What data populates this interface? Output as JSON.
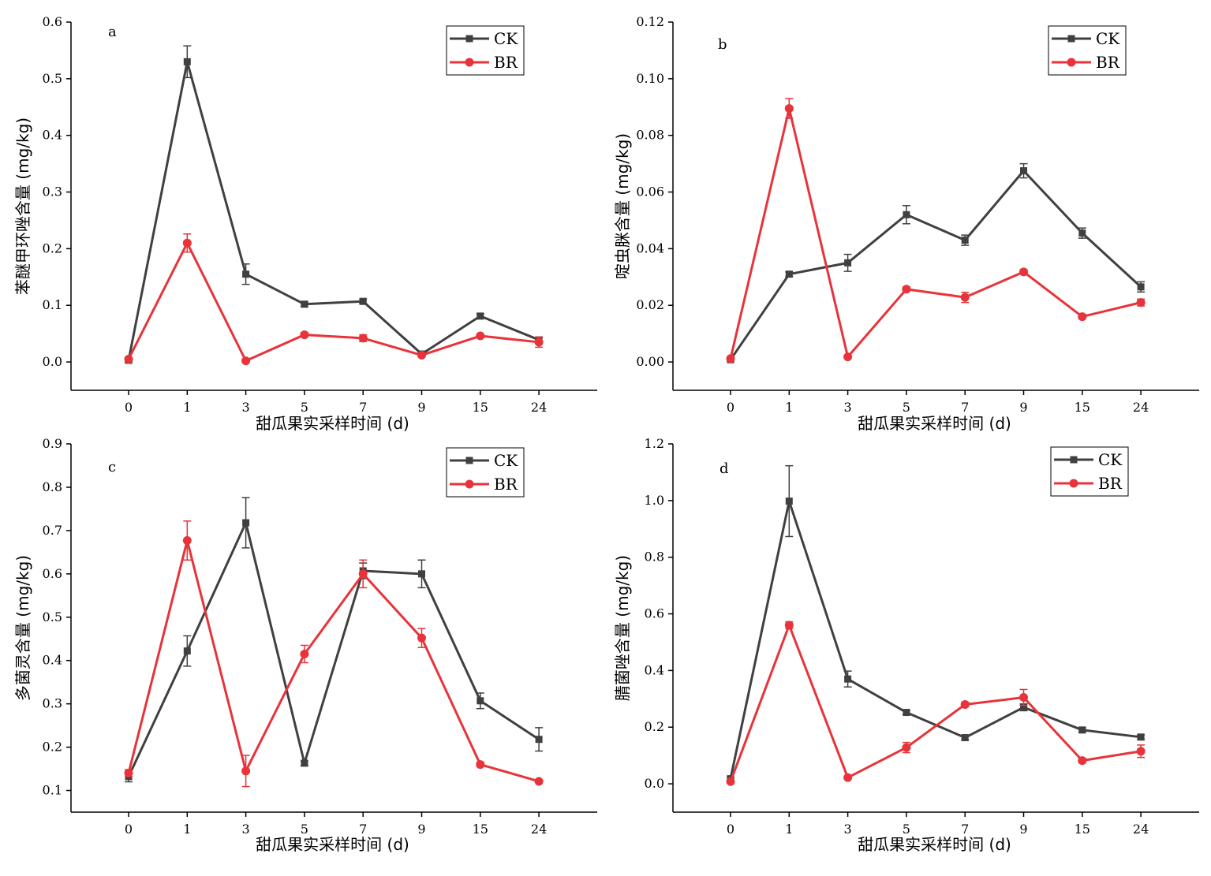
{
  "colors": {
    "ck": "#404040",
    "br": "#e8333a"
  },
  "legend": {
    "ck": "CK",
    "br": "BR"
  },
  "chart_data": [
    {
      "type": "line",
      "panel": "a",
      "xlabel": "甜瓜果实采样时间 (d)",
      "ylabel": "苯醚甲环唑含量 (mg/kg)",
      "categories": [
        "0",
        "1",
        "3",
        "5",
        "7",
        "9",
        "15",
        "24"
      ],
      "ylim": [
        -0.05,
        0.6
      ],
      "yticks": [
        0.0,
        0.1,
        0.2,
        0.3,
        0.4,
        0.5,
        0.6
      ],
      "ytick_labels": [
        "0.0",
        "0.1",
        "0.2",
        "0.3",
        "0.4",
        "0.5",
        "0.6"
      ],
      "legend_position": "top-right",
      "series": [
        {
          "name": "CK",
          "values": [
            0.003,
            0.53,
            0.155,
            0.102,
            0.107,
            0.014,
            0.081,
            0.039
          ],
          "errors": [
            0.003,
            0.028,
            0.018,
            0.004,
            0.004,
            0.003,
            0.004,
            0.004
          ]
        },
        {
          "name": "BR",
          "values": [
            0.005,
            0.21,
            0.002,
            0.048,
            0.042,
            0.012,
            0.046,
            0.035
          ],
          "errors": [
            0.003,
            0.016,
            0.002,
            0.004,
            0.006,
            0.003,
            0.003,
            0.009
          ]
        }
      ]
    },
    {
      "type": "line",
      "panel": "b",
      "xlabel": "甜瓜果实采样时间 (d)",
      "ylabel": "啶虫脒含量 (mg/kg)",
      "categories": [
        "0",
        "1",
        "3",
        "5",
        "7",
        "9",
        "15",
        "24"
      ],
      "ylim": [
        -0.01,
        0.12
      ],
      "yticks": [
        0.0,
        0.02,
        0.04,
        0.06,
        0.08,
        0.1,
        0.12
      ],
      "ytick_labels": [
        "0.00",
        "0.02",
        "0.04",
        "0.06",
        "0.08",
        "0.10",
        "0.12"
      ],
      "legend_position": "top-right",
      "series": [
        {
          "name": "CK",
          "values": [
            0.0008,
            0.031,
            0.035,
            0.052,
            0.043,
            0.0675,
            0.0455,
            0.0265
          ],
          "errors": [
            0.0004,
            0.0008,
            0.003,
            0.0032,
            0.0018,
            0.0025,
            0.0018,
            0.0018
          ]
        },
        {
          "name": "BR",
          "values": [
            0.0012,
            0.0895,
            0.0018,
            0.0257,
            0.0228,
            0.0318,
            0.016,
            0.021
          ],
          "errors": [
            0.0004,
            0.0035,
            0.0004,
            0.0008,
            0.0018,
            0.0008,
            0.0008,
            0.0012
          ]
        }
      ]
    },
    {
      "type": "line",
      "panel": "c",
      "xlabel": "甜瓜果实采样时间 (d)",
      "ylabel": "多菌灵含量 (mg/kg)",
      "categories": [
        "0",
        "1",
        "3",
        "5",
        "7",
        "9",
        "15",
        "24"
      ],
      "ylim": [
        0.05,
        0.9
      ],
      "yticks": [
        0.1,
        0.2,
        0.3,
        0.4,
        0.5,
        0.6,
        0.7,
        0.8,
        0.9
      ],
      "ytick_labels": [
        "0.1",
        "0.2",
        "0.3",
        "0.4",
        "0.5",
        "0.6",
        "0.7",
        "0.8",
        "0.9"
      ],
      "legend_position": "top-right",
      "series": [
        {
          "name": "CK",
          "values": [
            0.132,
            0.422,
            0.718,
            0.163,
            0.607,
            0.6,
            0.307,
            0.218
          ],
          "errors": [
            0.012,
            0.035,
            0.058,
            0.005,
            0.018,
            0.032,
            0.018,
            0.027
          ]
        },
        {
          "name": "BR",
          "values": [
            0.14,
            0.677,
            0.145,
            0.415,
            0.6,
            0.452,
            0.16,
            0.121
          ],
          "errors": [
            0.008,
            0.045,
            0.036,
            0.02,
            0.032,
            0.022,
            0.005,
            0.003
          ]
        }
      ]
    },
    {
      "type": "line",
      "panel": "d",
      "xlabel": "甜瓜果实采样时间 (d)",
      "ylabel": "腈菌唑含量 (mg/kg)",
      "categories": [
        "0",
        "1",
        "3",
        "5",
        "7",
        "9",
        "15",
        "24"
      ],
      "ylim": [
        -0.1,
        1.2
      ],
      "yticks": [
        0.0,
        0.2,
        0.4,
        0.6,
        0.8,
        1.0,
        1.2
      ],
      "ytick_labels": [
        "0.0",
        "0.2",
        "0.4",
        "0.6",
        "0.8",
        "1.0",
        "1.2"
      ],
      "legend_position": "top-right",
      "series": [
        {
          "name": "CK",
          "values": [
            0.018,
            0.998,
            0.37,
            0.252,
            0.163,
            0.27,
            0.19,
            0.165
          ],
          "errors": [
            0.004,
            0.125,
            0.028,
            0.008,
            0.008,
            0.012,
            0.008,
            0.008
          ]
        },
        {
          "name": "BR",
          "values": [
            0.008,
            0.56,
            0.022,
            0.128,
            0.28,
            0.305,
            0.082,
            0.115
          ],
          "errors": [
            0.004,
            0.012,
            0.004,
            0.018,
            0.008,
            0.028,
            0.008,
            0.022
          ]
        }
      ]
    }
  ]
}
